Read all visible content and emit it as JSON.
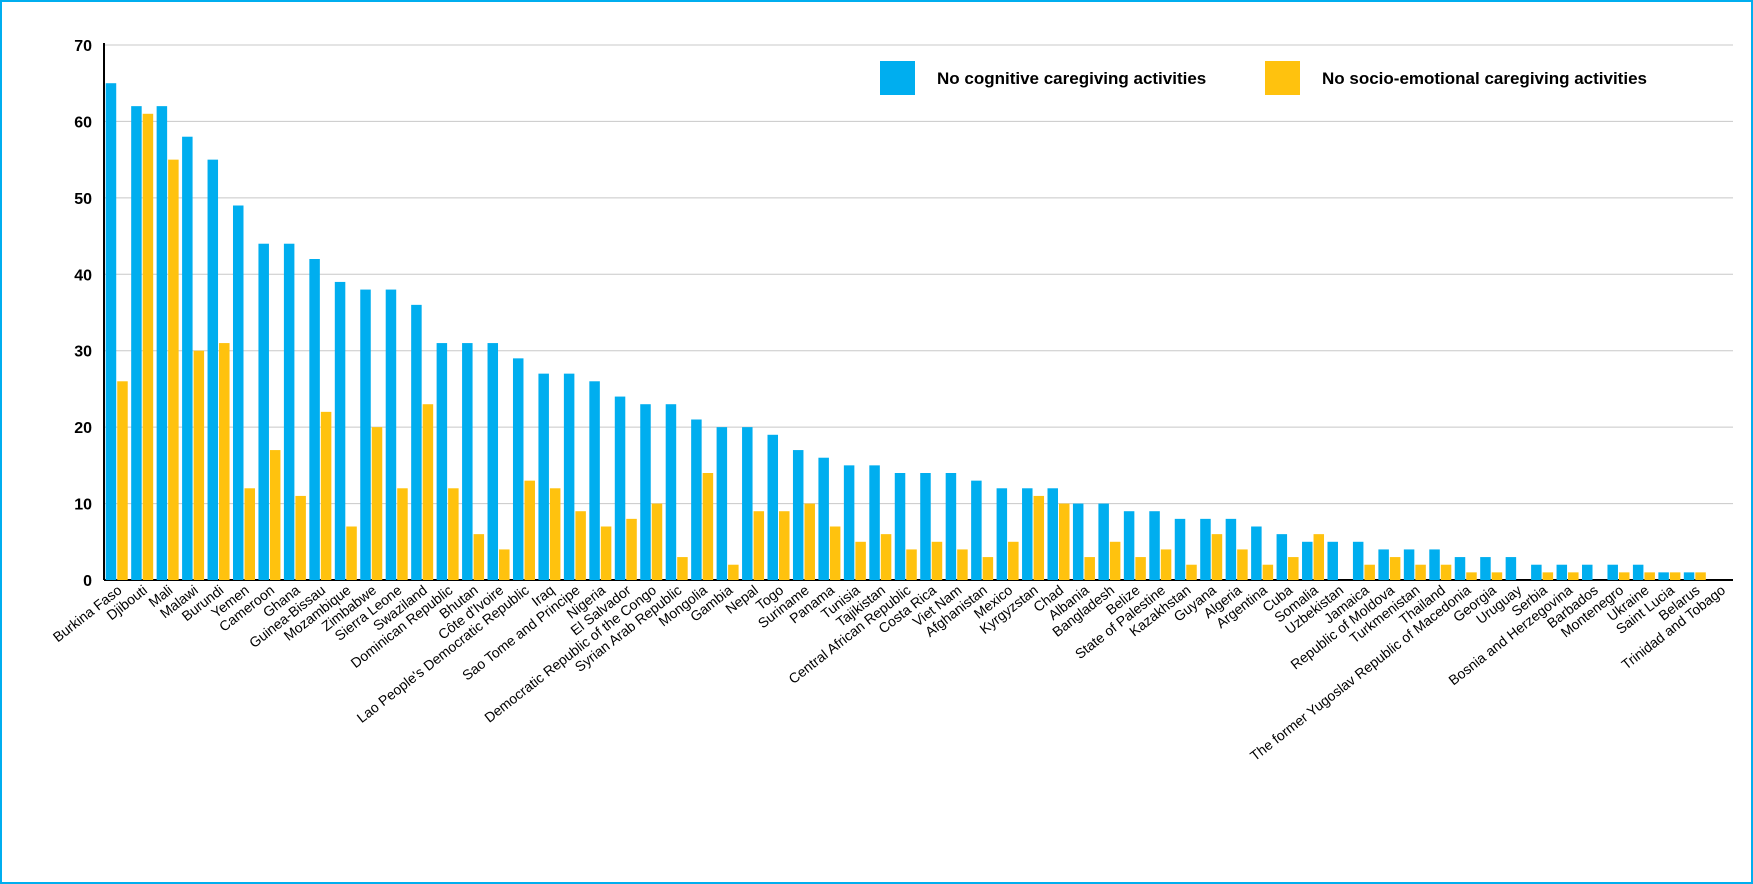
{
  "chart_data": {
    "type": "bar",
    "title": "",
    "xlabel": "",
    "ylabel": "",
    "ylim": [
      0,
      70
    ],
    "yticks": [
      0,
      10,
      20,
      30,
      40,
      50,
      60,
      70
    ],
    "grid": true,
    "legend_position": "top-right",
    "categories": [
      "Burkina Faso",
      "Djibouti",
      "Mali",
      "Malawi",
      "Burundi",
      "Yemen",
      "Cameroon",
      "Ghana",
      "Guinea-Bissau",
      "Mozambique",
      "Zimbabwe",
      "Sierra Leone",
      "Swaziland",
      "Dominican Republic",
      "Bhutan",
      "Côte d'Ivoire",
      "Lao People's Democratic Republic",
      "Iraq",
      "Sao Tome and Principe",
      "Nigeria",
      "El Salvador",
      "Democratic Republic of the Congo",
      "Syrian Arab Republic",
      "Mongolia",
      "Gambia",
      "Nepal",
      "Togo",
      "Suriname",
      "Panama",
      "Tunisia",
      "Tajikistan",
      "Central African Republic",
      "Costa Rica",
      "Viet Nam",
      "Afghanistan",
      "Mexico",
      "Kyrgyzstan",
      "Chad",
      "Albania",
      "Bangladesh",
      "Belize",
      "State of Palestine",
      "Kazakhstan",
      "Guyana",
      "Algeria",
      "Argentina",
      "Cuba",
      "Somalia",
      "Uzbekistan",
      "Jamaica",
      "Republic of Moldova",
      "Turkmenistan",
      "Thailand",
      "The former Yugoslav Republic of Macedonia",
      "Georgia",
      "Uruguay",
      "Serbia",
      "Bosnia and Herzegovina",
      "Barbados",
      "Montenegro",
      "Ukraine",
      "Saint Lucia",
      "Belarus",
      "Trinidad and Tobago"
    ],
    "series": [
      {
        "name": "No cognitive caregiving activities",
        "color": "#00aeef",
        "values": [
          65,
          62,
          62,
          58,
          55,
          49,
          44,
          44,
          42,
          39,
          38,
          38,
          36,
          31,
          31,
          31,
          29,
          27,
          27,
          26,
          24,
          23,
          23,
          21,
          20,
          20,
          19,
          17,
          16,
          15,
          15,
          14,
          14,
          14,
          13,
          12,
          12,
          12,
          10,
          10,
          9,
          9,
          8,
          8,
          8,
          7,
          6,
          5,
          5,
          5,
          4,
          4,
          4,
          3,
          3,
          3,
          2,
          2,
          2,
          2,
          2,
          1,
          1,
          null
        ]
      },
      {
        "name": "No socio-emotional caregiving activities",
        "color": "#ffc20e",
        "values": [
          26,
          61,
          55,
          30,
          31,
          12,
          17,
          11,
          22,
          7,
          20,
          12,
          23,
          12,
          6,
          4,
          13,
          12,
          9,
          7,
          8,
          10,
          3,
          14,
          2,
          9,
          9,
          10,
          7,
          5,
          6,
          4,
          5,
          4,
          3,
          5,
          11,
          10,
          3,
          5,
          3,
          4,
          2,
          6,
          4,
          2,
          3,
          6,
          null,
          2,
          3,
          2,
          2,
          1,
          1,
          null,
          1,
          1,
          null,
          1,
          1,
          1,
          1,
          null
        ]
      }
    ]
  }
}
